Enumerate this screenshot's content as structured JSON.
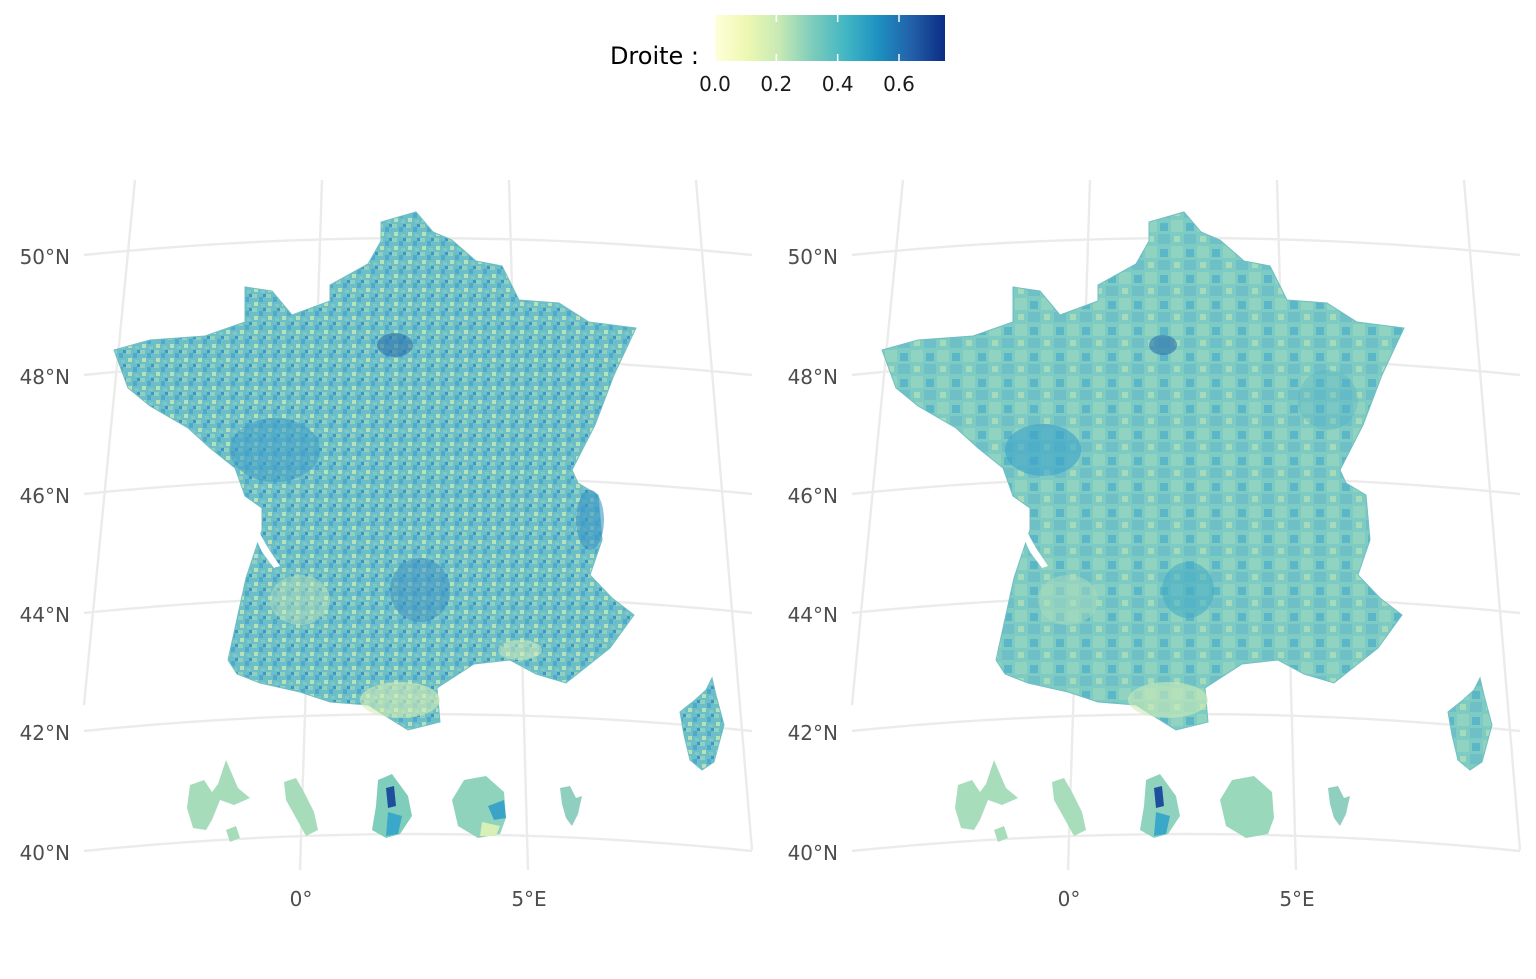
{
  "legend": {
    "title": "Droite :",
    "ticks": [
      {
        "label": "0.0",
        "value": 0.0
      },
      {
        "label": "0.2",
        "value": 0.2
      },
      {
        "label": "0.4",
        "value": 0.4
      },
      {
        "label": "0.6",
        "value": 0.6
      }
    ],
    "range": [
      0.0,
      0.75
    ],
    "palette": [
      "#ffffd9",
      "#edf8b1",
      "#c7e9b4",
      "#7fcdbb",
      "#41b6c4",
      "#1d91c0",
      "#225ea8",
      "#0c2c84"
    ]
  },
  "axes": {
    "lat_labels": [
      "50°N",
      "48°N",
      "46°N",
      "44°N",
      "42°N",
      "40°N"
    ],
    "lon_labels": [
      "0°",
      "5°E"
    ]
  },
  "panels": [
    {
      "name": "left-map",
      "level": "fine",
      "base_color": "#6bbfc6"
    },
    {
      "name": "right-map",
      "level": "coarse",
      "base_color": "#7ccbc2"
    }
  ],
  "colors": {
    "grid": "#ebebeb",
    "axis_text": "#4d4d4d",
    "dark_blue": "#21579f",
    "mid_blue": "#3aa3c8",
    "pale": "#d9efb8"
  }
}
